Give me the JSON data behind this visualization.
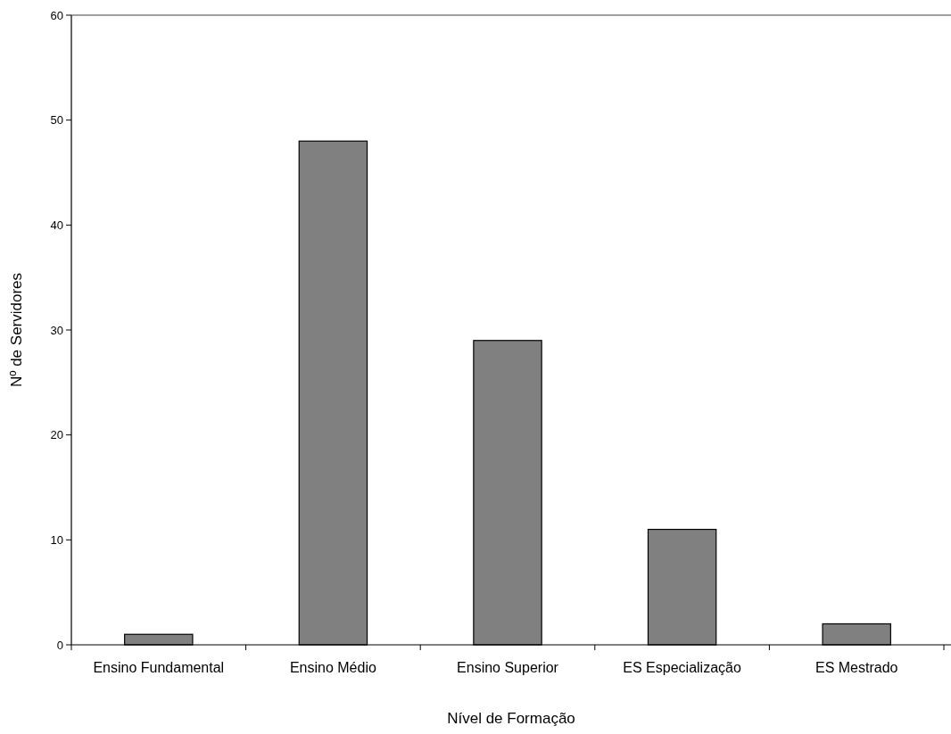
{
  "chart_data": {
    "type": "bar",
    "xlabel": "Nível de Formação",
    "ylabel": "Nº de Servidores",
    "categories": [
      "Ensino Fundamental",
      "Ensino Médio",
      "Ensino Superior",
      "ES Especialização",
      "ES Mestrado"
    ],
    "values": [
      1,
      48,
      29,
      11,
      2
    ],
    "color": "#808080",
    "ylim": [
      0,
      60
    ],
    "yticks": [
      0,
      10,
      20,
      30,
      40,
      50,
      60
    ],
    "grid": false
  }
}
